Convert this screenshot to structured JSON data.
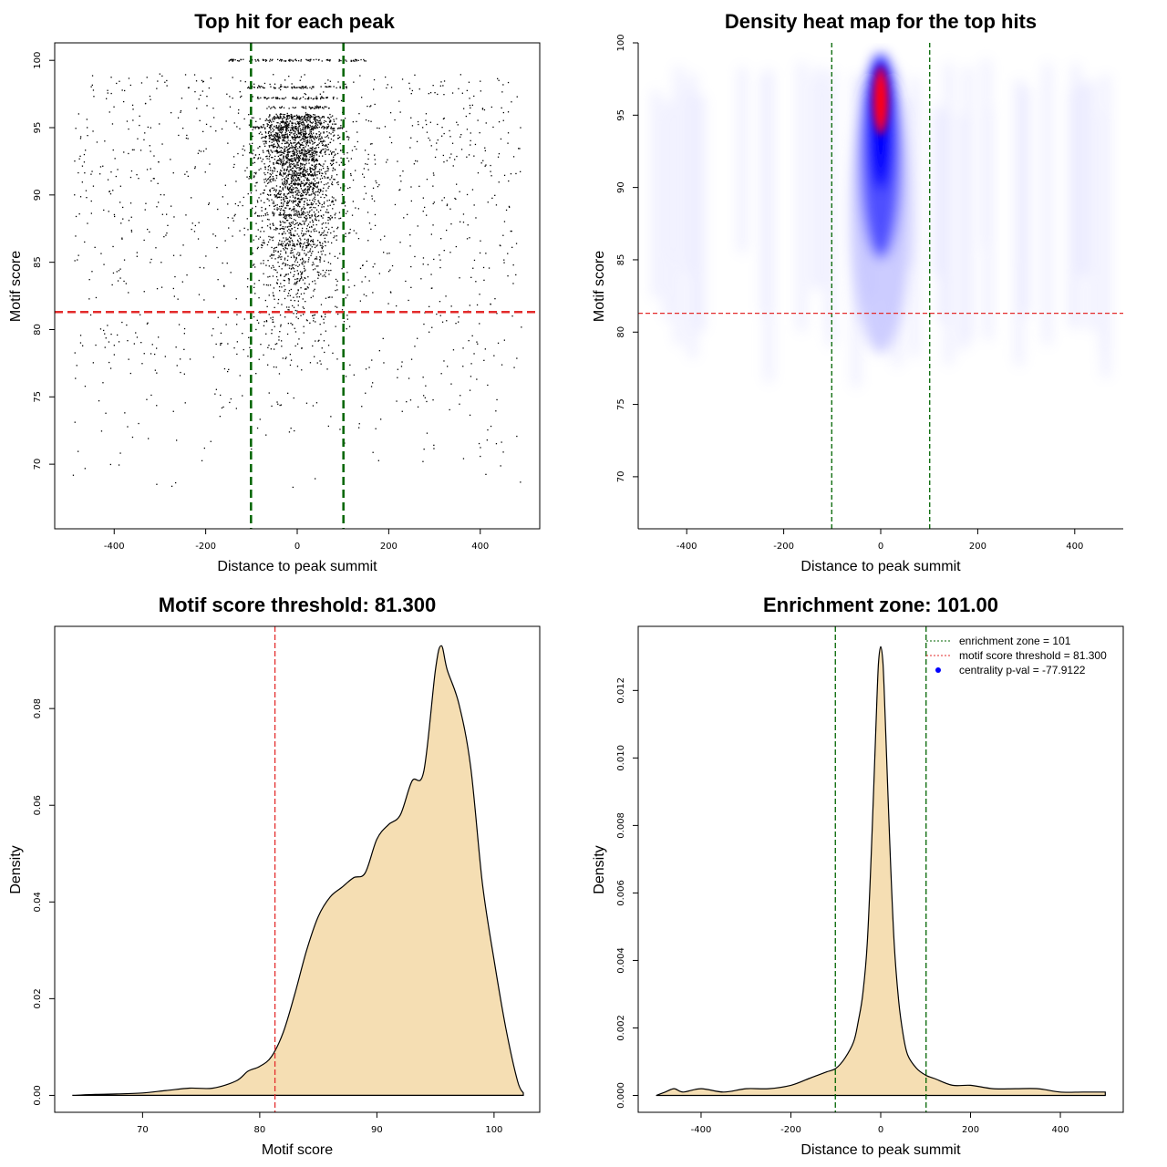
{
  "colors": {
    "green_line": "#006400",
    "red_line": "#e32b2b",
    "density_fill": "#f5deb3",
    "heat_low": "#ffffff",
    "heat_mid": "#0000ff",
    "heat_high": "#ff0000"
  },
  "chart_data": [
    {
      "id": "scatter",
      "type": "scatter",
      "title": "Top hit for each peak",
      "xlabel": "Distance to peak summit",
      "ylabel": "Motif score",
      "xlim": [
        -530,
        530
      ],
      "ylim": [
        65.2,
        101.3
      ],
      "xticks": [
        -400,
        -200,
        0,
        200,
        400
      ],
      "yticks": [
        70,
        75,
        80,
        85,
        90,
        95,
        100
      ],
      "vlines": [
        -101,
        101
      ],
      "hline": 81.3,
      "point_bands": [
        {
          "y": 100,
          "range": [
            -150,
            150
          ]
        },
        {
          "y": 98,
          "range": [
            -110,
            110
          ]
        },
        {
          "y": 97.2,
          "range": [
            -90,
            90
          ]
        },
        {
          "y": 96.5,
          "range": [
            -70,
            70
          ]
        },
        {
          "y": 95.8,
          "range": [
            -60,
            60
          ]
        },
        {
          "y": 95,
          "range": [
            -100,
            100
          ]
        },
        {
          "y": 94.3,
          "range": [
            -50,
            50
          ]
        },
        {
          "y": 93.2,
          "range": [
            -45,
            45
          ]
        },
        {
          "y": 92.6,
          "range": [
            -45,
            45
          ]
        },
        {
          "y": 91.5,
          "range": [
            -40,
            40
          ]
        },
        {
          "y": 90.8,
          "range": [
            -40,
            40
          ]
        },
        {
          "y": 88.5,
          "range": [
            -40,
            40
          ]
        },
        {
          "y": 86.3,
          "range": [
            -35,
            35
          ]
        }
      ]
    },
    {
      "id": "heatmap",
      "type": "heatmap",
      "title": "Density heat map for the top hits",
      "xlabel": "Distance to peak summit",
      "ylabel": "Motif score",
      "xlim": [
        -500,
        500
      ],
      "ylim": [
        66.4,
        100
      ],
      "xticks": [
        -400,
        -200,
        0,
        200,
        400
      ],
      "yticks": [
        70,
        75,
        80,
        85,
        90,
        95,
        100
      ],
      "vlines": [
        -101,
        101
      ],
      "hline": 81.3,
      "peak": {
        "x": 0,
        "y": 96
      }
    },
    {
      "id": "score-density",
      "type": "area",
      "title": "Motif score threshold: 81.300",
      "xlabel": "Motif score",
      "ylabel": "Density",
      "xlim": [
        62.5,
        103.9
      ],
      "ylim": [
        -0.0035,
        0.097
      ],
      "xticks": [
        70,
        80,
        90,
        100
      ],
      "yticks": [
        0.0,
        0.02,
        0.04,
        0.06,
        0.08
      ],
      "ytick_labels": [
        "0.00",
        "0.02",
        "0.04",
        "0.06",
        "0.08"
      ],
      "vline": 81.3,
      "x": [
        64,
        66,
        68,
        70,
        72,
        74,
        76,
        78,
        79,
        80,
        81,
        82,
        83,
        84,
        85,
        86,
        87,
        88,
        89,
        90,
        91,
        92,
        93,
        94,
        95,
        95.5,
        96,
        97,
        98,
        99,
        100,
        101,
        102,
        102.5
      ],
      "y": [
        0.0,
        0.0002,
        0.0003,
        0.0005,
        0.001,
        0.0015,
        0.0015,
        0.003,
        0.005,
        0.006,
        0.008,
        0.013,
        0.021,
        0.03,
        0.037,
        0.041,
        0.043,
        0.045,
        0.046,
        0.053,
        0.056,
        0.058,
        0.065,
        0.067,
        0.088,
        0.093,
        0.088,
        0.081,
        0.068,
        0.044,
        0.028,
        0.014,
        0.003,
        0.0005
      ]
    },
    {
      "id": "distance-density",
      "type": "area",
      "title": "Enrichment zone: 101.00",
      "xlabel": "Distance to peak summit",
      "ylabel": "Density",
      "xlim": [
        -540,
        540
      ],
      "ylim": [
        -0.0005,
        0.0139
      ],
      "xticks": [
        -400,
        -200,
        0,
        200,
        400
      ],
      "yticks": [
        0.0,
        0.002,
        0.004,
        0.006,
        0.008,
        0.01,
        0.012
      ],
      "ytick_labels": [
        "0.000",
        "0.002",
        "0.004",
        "0.006",
        "0.008",
        "0.010",
        "0.012"
      ],
      "vlines": [
        -101,
        101
      ],
      "x": [
        -500,
        -480,
        -460,
        -440,
        -400,
        -350,
        -300,
        -250,
        -200,
        -160,
        -140,
        -120,
        -100,
        -80,
        -60,
        -50,
        -40,
        -30,
        -20,
        -10,
        -5,
        0,
        5,
        10,
        20,
        30,
        40,
        50,
        60,
        80,
        100,
        120,
        160,
        200,
        250,
        300,
        350,
        400,
        450,
        500
      ],
      "y": [
        0.0,
        0.0001,
        0.0002,
        0.0001,
        0.0002,
        0.0001,
        0.0002,
        0.0002,
        0.0003,
        0.0005,
        0.0006,
        0.0007,
        0.0008,
        0.0011,
        0.0016,
        0.0022,
        0.003,
        0.0045,
        0.0075,
        0.0112,
        0.0128,
        0.0133,
        0.0128,
        0.0112,
        0.0075,
        0.0045,
        0.0028,
        0.0018,
        0.0012,
        0.0008,
        0.0006,
        0.0005,
        0.0003,
        0.0003,
        0.0002,
        0.0002,
        0.0002,
        0.0001,
        0.0001,
        0.0001
      ],
      "legend": {
        "placement": "top-right",
        "items": [
          {
            "label": "enrichment zone = 101",
            "kind": "dotted-line",
            "color": "#006400"
          },
          {
            "label": "motif score threshold = 81.300",
            "kind": "dotted-line",
            "color": "#e32b2b"
          },
          {
            "label": "centrality p-val = -77.9122",
            "kind": "point",
            "color": "#0000ff"
          }
        ]
      }
    }
  ]
}
